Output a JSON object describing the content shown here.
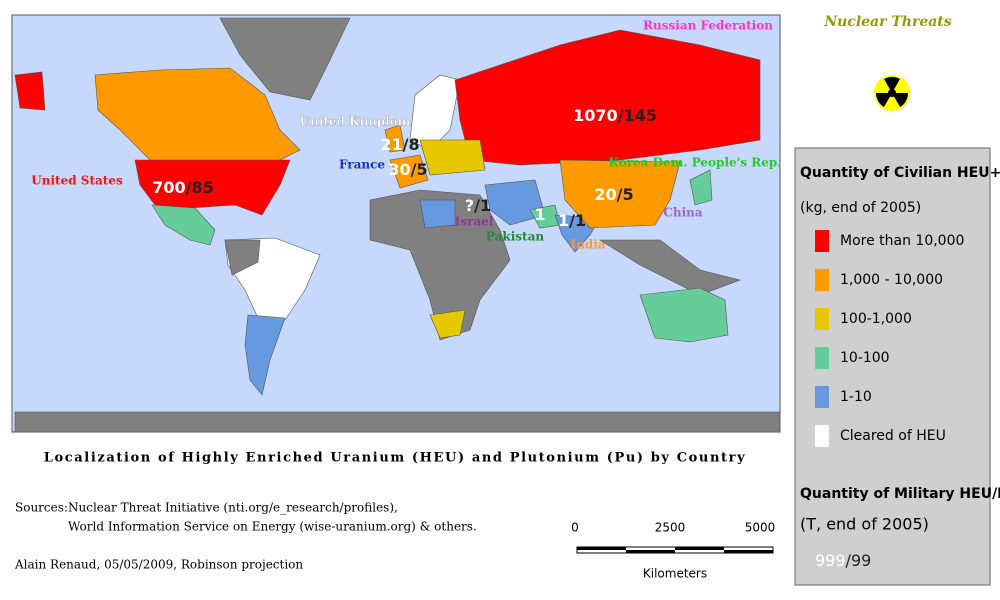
{
  "header": {
    "title": "Nuclear Threats"
  },
  "map": {
    "country_labels": [
      "Russian Federation",
      "United Kingdom",
      "France",
      "United States",
      "Korea Dem. People's Rep.",
      "China",
      "Israel",
      "Pakistan",
      "India"
    ],
    "data_labels": [
      {
        "parts": [
          "1070",
          "/145"
        ]
      },
      {
        "parts": [
          "700",
          "/85"
        ]
      },
      {
        "parts": [
          "21",
          "/8"
        ]
      },
      {
        "parts": [
          "30",
          "/5"
        ]
      },
      {
        "parts": [
          "20",
          "/5"
        ]
      },
      {
        "parts": [
          "?",
          "/1"
        ]
      },
      {
        "parts": [
          "1",
          "/1"
        ]
      },
      {
        "parts": [
          "1"
        ]
      }
    ]
  },
  "legend": {
    "civilian_title": "Quantity of Civilian HEU+Pu",
    "civilian_unit": "(kg, end of 2005)",
    "items": [
      {
        "label": "More than 10,000",
        "color": "#ff0000"
      },
      {
        "label": "1,000 - 10,000",
        "color": "#ff9900"
      },
      {
        "label": "100-1,000",
        "color": "#e6c800"
      },
      {
        "label": "10-100",
        "color": "#66cc99"
      },
      {
        "label": "1-10",
        "color": "#6699dd"
      },
      {
        "label": "Cleared of HEU",
        "color": "#ffffff"
      }
    ],
    "military_title": "Quantity of Military HEU/Pu",
    "military_unit": "(T, end of 2005)",
    "example": [
      "999",
      "/99"
    ]
  },
  "caption": "Localization of Highly Enriched Uranium (HEU) and Plutonium (Pu) by Country",
  "sources": {
    "label": "Sources:",
    "lines": [
      "Nuclear Threat Initiative (nti.org/e_research/profiles),",
      "World Information Service on Energy (wise-uranium.org) & others."
    ]
  },
  "credit": "Alain Renaud, 05/05/2009, Robinson projection",
  "scale": {
    "ticks": [
      "0",
      "2500",
      "5000"
    ],
    "unit": "Kilometers"
  }
}
